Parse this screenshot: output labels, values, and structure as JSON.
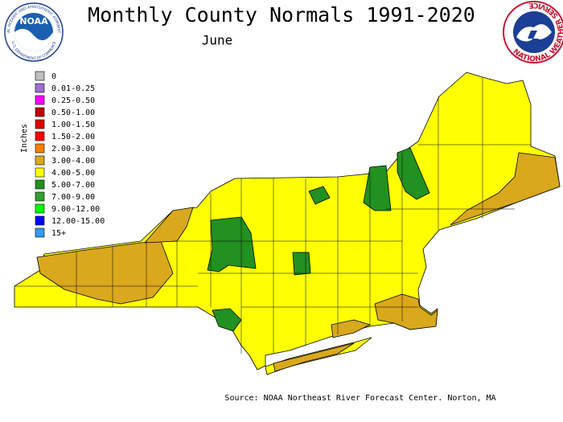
{
  "header": {
    "title": "Monthly County Normals 1991-2020",
    "subtitle": "June"
  },
  "logos": {
    "noaa": "NOAA",
    "noaa_ring": "NATIONAL OCEANIC AND ATMOSPHERIC ADMINISTRATION",
    "noaa_ring_bottom": "U.S. DEPARTMENT OF COMMERCE",
    "nws_ring": "NATIONAL WEATHER SERVICE"
  },
  "legend": {
    "title": "Inches",
    "items": [
      {
        "label": "0",
        "color": "#c0c0c0"
      },
      {
        "label": "0.01-0.25",
        "color": "#a070d0"
      },
      {
        "label": "0.25-0.50",
        "color": "#ff00ff"
      },
      {
        "label": "0.50-1.00",
        "color": "#c00000"
      },
      {
        "label": "1.00-1.50",
        "color": "#e00000"
      },
      {
        "label": "1.50-2.00",
        "color": "#ff0000"
      },
      {
        "label": "2.00-3.00",
        "color": "#ff8000"
      },
      {
        "label": "3.00-4.00",
        "color": "#d9a81c"
      },
      {
        "label": "4.00-5.00",
        "color": "#ffff00"
      },
      {
        "label": "5.00-7.00",
        "color": "#22911f"
      },
      {
        "label": "7.00-9.00",
        "color": "#30a030"
      },
      {
        "label": "9.00-12.00",
        "color": "#00ff00"
      },
      {
        "label": "12.00-15.00",
        "color": "#0000ff"
      },
      {
        "label": "15+",
        "color": "#3399ff"
      }
    ]
  },
  "footer": {
    "source": "Source: NOAA Northeast River Forecast Center. Norton, MA"
  }
}
